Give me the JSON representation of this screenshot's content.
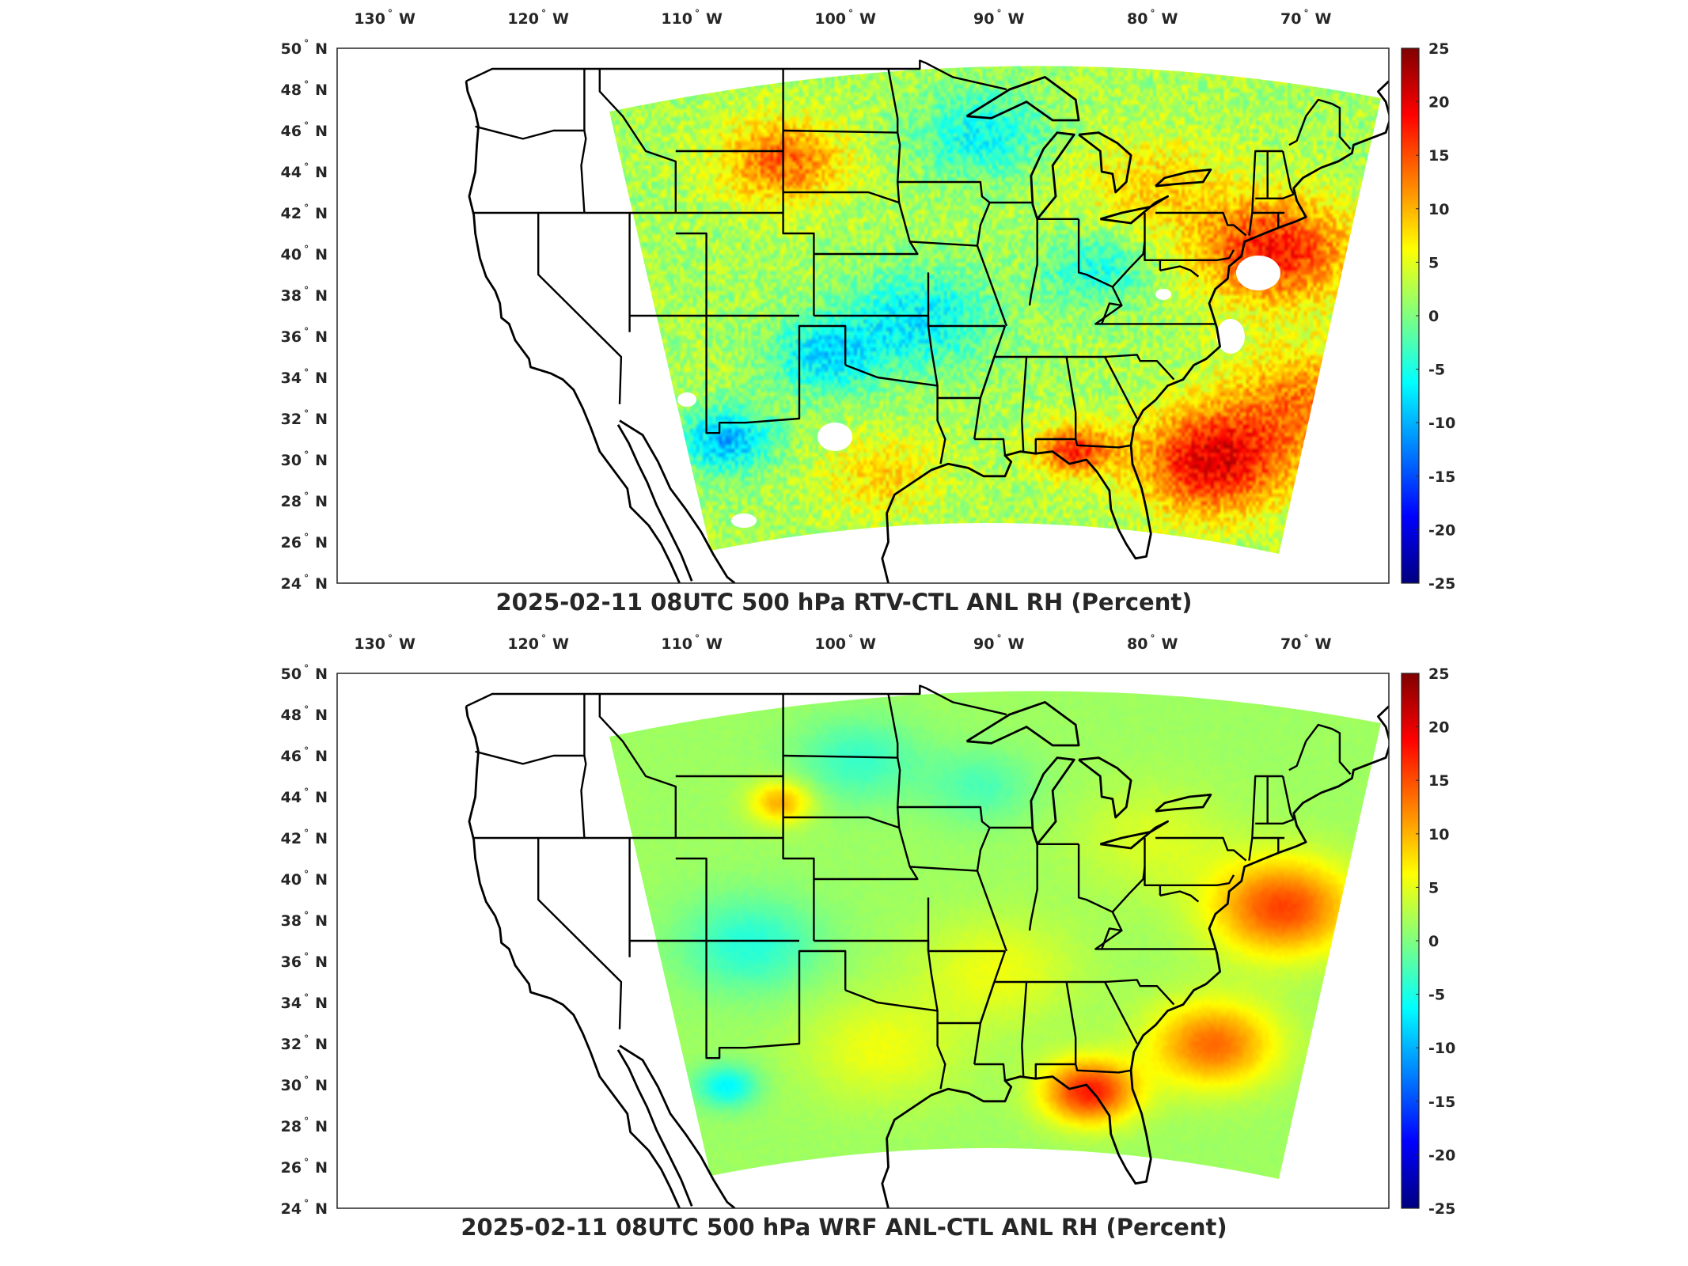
{
  "panels": [
    {
      "id": "top",
      "title": "2025-02-11 08UTC 500 hPa RTV-CTL ANL RH (Percent)",
      "field_style": "noisy",
      "missing_data_patches": true
    },
    {
      "id": "bottom",
      "title": "2025-02-11 08UTC 500 hPa WRF ANL-CTL ANL RH (Percent)",
      "field_style": "smooth",
      "missing_data_patches": false
    }
  ],
  "map": {
    "lon_ticks": [
      {
        "num": "130",
        "hemi": "W"
      },
      {
        "num": "120",
        "hemi": "W"
      },
      {
        "num": "110",
        "hemi": "W"
      },
      {
        "num": "100",
        "hemi": "W"
      },
      {
        "num": "90",
        "hemi": "W"
      },
      {
        "num": "80",
        "hemi": "W"
      },
      {
        "num": "70",
        "hemi": "W"
      }
    ],
    "lat_ticks": [
      {
        "num": "50",
        "hemi": "N"
      },
      {
        "num": "48",
        "hemi": "N"
      },
      {
        "num": "46",
        "hemi": "N"
      },
      {
        "num": "44",
        "hemi": "N"
      },
      {
        "num": "42",
        "hemi": "N"
      },
      {
        "num": "40",
        "hemi": "N"
      },
      {
        "num": "38",
        "hemi": "N"
      },
      {
        "num": "36",
        "hemi": "N"
      },
      {
        "num": "34",
        "hemi": "N"
      },
      {
        "num": "32",
        "hemi": "N"
      },
      {
        "num": "30",
        "hemi": "N"
      },
      {
        "num": "28",
        "hemi": "N"
      },
      {
        "num": "26",
        "hemi": "N"
      },
      {
        "num": "24",
        "hemi": "N"
      }
    ],
    "degree_symbol": "°"
  },
  "colorbar": {
    "colormap": "jet",
    "range": [
      -25,
      25
    ],
    "tick_labels": [
      "25",
      "20",
      "15",
      "10",
      "5",
      "0",
      "-5",
      "-10",
      "-15",
      "-20",
      "-25"
    ]
  },
  "colors": {
    "frame": "#262626",
    "coastline": "#000000",
    "jet_low": "#00008f",
    "jet_mid": "#80ff80",
    "jet_high": "#800000"
  }
}
